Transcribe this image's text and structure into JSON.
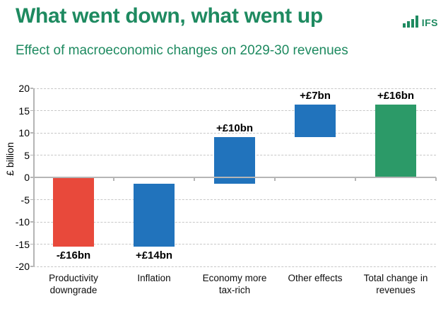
{
  "header": {
    "title": "What went down, what went up",
    "logo_text": "IFS"
  },
  "theme": {
    "brand_green": "#1e8a60",
    "gridline_gray": "#c7c7c7",
    "axis_gray": "#b5b5b5",
    "label_black": "#000000",
    "red_bar": "#e8493b",
    "blue_bar": "#2173bc",
    "green_bar": "#2c9a68"
  },
  "chart_data": {
    "type": "bar",
    "variant": "waterfall",
    "title": "What went down, what went up",
    "subtitle": "Effect of macroeconomic changes on 2029-30 revenues",
    "ylabel": "£ billion",
    "ylim": [
      -20,
      20
    ],
    "yticks": [
      20,
      15,
      10,
      5,
      0,
      -5,
      -10,
      -15,
      -20
    ],
    "grid": "horizontal-dashed",
    "legend": "none",
    "categories": [
      "Productivity downgrade",
      "Inflation",
      "Economy more tax-rich",
      "Other effects",
      "Total change in revenues"
    ],
    "bars": [
      {
        "category": "Productivity downgrade",
        "value": -16,
        "label": "-£16bn",
        "start": 0,
        "end": -15.5,
        "color": "#e8493b",
        "label_side": "below"
      },
      {
        "category": "Inflation",
        "value": 14,
        "label": "+£14bn",
        "start": -15.5,
        "end": -1.5,
        "color": "#2173bc",
        "label_side": "below"
      },
      {
        "category": "Economy more tax-rich",
        "value": 10,
        "label": "+£10bn",
        "start": -1.5,
        "end": 9,
        "color": "#2173bc",
        "label_side": "above"
      },
      {
        "category": "Other effects",
        "value": 7,
        "label": "+£7bn",
        "start": 9,
        "end": 16.3,
        "color": "#2173bc",
        "label_side": "above"
      },
      {
        "category": "Total change in revenues",
        "value": 16,
        "label": "+£16bn",
        "start": 0,
        "end": 16.3,
        "color": "#2c9a68",
        "label_side": "above"
      }
    ]
  }
}
